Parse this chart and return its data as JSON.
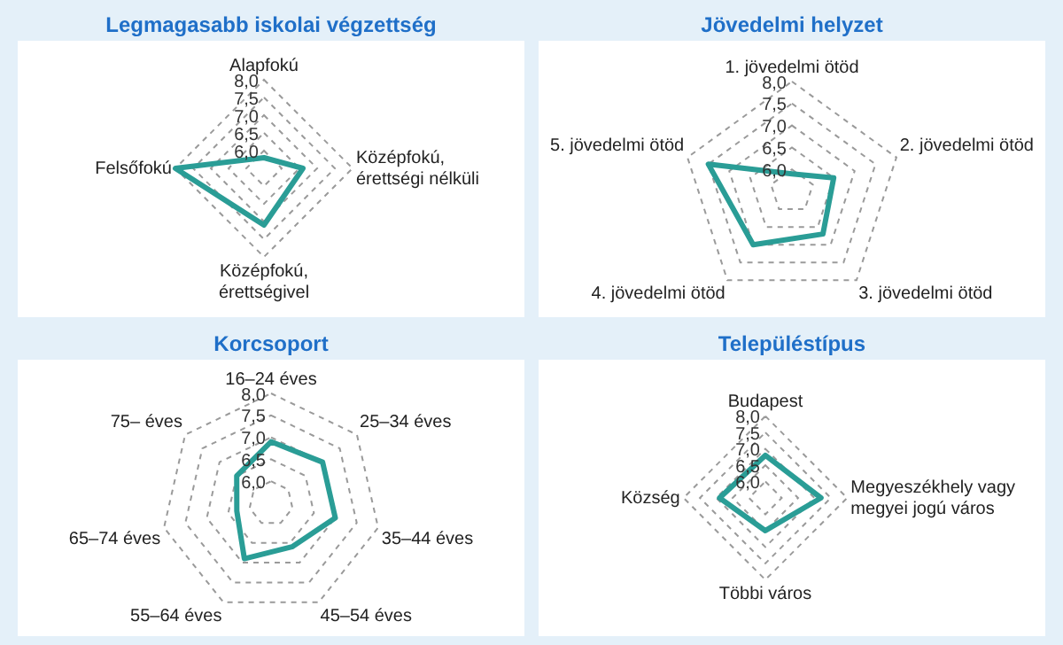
{
  "chart_data": [
    {
      "type": "radar",
      "title": "Legmagasabb iskolai végzettség",
      "categories": [
        "Alapfokú",
        "Középfokú, érettségi nélküli",
        "Középfokú, érettségivel",
        "Felsőfokú"
      ],
      "series": [
        {
          "color": "#2a9d96",
          "values": [
            5.8,
            6.6,
            7.1,
            8.0
          ]
        }
      ],
      "ylim": [
        5.5,
        8.0
      ],
      "yticks": [
        {
          "value": 6,
          "label": "6,0"
        },
        {
          "value": 6.5,
          "label": "6,5"
        },
        {
          "value": 7,
          "label": "7,0"
        },
        {
          "value": 7.5,
          "label": "7,5"
        },
        {
          "value": 8,
          "label": "8,0"
        }
      ],
      "grid": true,
      "marker": "none",
      "line_style": "solid"
    },
    {
      "type": "radar",
      "title": "Jövedelmi helyzet",
      "categories": [
        "1. jövedelmi ötöd",
        "2. jövedelmi ötöd",
        "3. jövedelmi ötöd",
        "4. jövedelmi ötöd",
        "5. jövedelmi ötöd"
      ],
      "series": [
        {
          "color": "#2a9d96",
          "values": [
            5.9,
            6.5,
            6.7,
            7.0,
            7.5
          ]
        }
      ],
      "ylim": [
        5.5,
        8.0
      ],
      "yticks": [
        {
          "value": 6,
          "label": "6,0"
        },
        {
          "value": 6.5,
          "label": "6,5"
        },
        {
          "value": 7,
          "label": "7,0"
        },
        {
          "value": 7.5,
          "label": "7,5"
        },
        {
          "value": 8,
          "label": "8,0"
        }
      ],
      "grid": true,
      "marker": "none",
      "line_style": "solid"
    },
    {
      "type": "radar",
      "title": "Korcsoport",
      "categories": [
        "16–24 éves",
        "25–34 éves",
        "35–44 éves",
        "45–54 éves",
        "55–64 éves",
        "65–74 éves",
        "75– éves"
      ],
      "series": [
        {
          "color": "#2a9d96",
          "values": [
            6.9,
            7.0,
            7.0,
            6.6,
            6.9,
            6.3,
            6.5
          ]
        }
      ],
      "ylim": [
        5.5,
        8.0
      ],
      "yticks": [
        {
          "value": 6,
          "label": "6,0"
        },
        {
          "value": 6.5,
          "label": "6,5"
        },
        {
          "value": 7,
          "label": "7,0"
        },
        {
          "value": 7.5,
          "label": "7,5"
        },
        {
          "value": 8,
          "label": "8,0"
        }
      ],
      "grid": true,
      "marker": "none",
      "line_style": "solid"
    },
    {
      "type": "radar",
      "title": "Településtípus",
      "categories": [
        "Budapest",
        "Megyeszékhely vagy megyei jogú város",
        "Többi város",
        "Község"
      ],
      "series": [
        {
          "color": "#2a9d96",
          "values": [
            6.8,
            7.2,
            6.5,
            6.9
          ]
        }
      ],
      "ylim": [
        5.5,
        8.0
      ],
      "yticks": [
        {
          "value": 6,
          "label": "6,0"
        },
        {
          "value": 6.5,
          "label": "6,5"
        },
        {
          "value": 7,
          "label": "7,0"
        },
        {
          "value": 7.5,
          "label": "7,5"
        },
        {
          "value": 8,
          "label": "8,0"
        }
      ],
      "grid": true,
      "marker": "none",
      "line_style": "solid"
    }
  ]
}
